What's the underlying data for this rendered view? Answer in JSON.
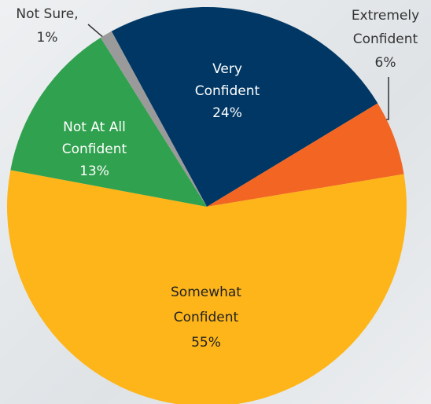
{
  "chart_data": {
    "type": "pie",
    "categories": [
      [
        "Very",
        "Confident"
      ],
      [
        "Extremely",
        "Confident"
      ],
      [
        "Somewhat",
        "Confident"
      ],
      [
        "Not At All",
        "Confident"
      ],
      [
        "Not Sure,"
      ]
    ],
    "values": [
      24,
      6,
      55,
      13,
      1
    ],
    "value_labels": [
      "24%",
      "6%",
      "55%",
      "13%",
      "1%"
    ],
    "colors": [
      "#003764",
      "#f26522",
      "#fdb51a",
      "#30a14e",
      "#9a9a9a"
    ]
  }
}
